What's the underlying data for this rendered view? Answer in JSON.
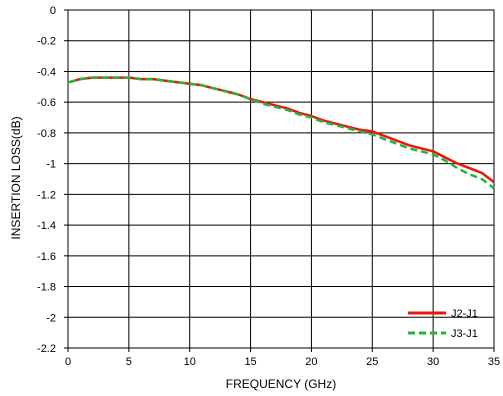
{
  "chart_data": {
    "type": "line",
    "title": "",
    "xlabel": "FREQUENCY (GHz)",
    "ylabel": "INSERTION LOSS(dB)",
    "xlim": [
      0,
      35
    ],
    "ylim": [
      -2.2,
      0
    ],
    "xticks": [
      0,
      5,
      10,
      15,
      20,
      25,
      30,
      35
    ],
    "yticks": [
      0,
      -0.2,
      -0.4,
      -0.6,
      -0.8,
      -1,
      -1.2,
      -1.4,
      -1.6,
      -1.8,
      -2,
      -2.2
    ],
    "xtick_labels": [
      "0",
      "5",
      "10",
      "15",
      "20",
      "25",
      "30",
      "35"
    ],
    "ytick_labels": [
      "0",
      "-0.2",
      "-0.4",
      "-0.6",
      "-0.8",
      "-1",
      "-1.2",
      "-1.4",
      "-1.6",
      "-1.8",
      "-2",
      "-2.2"
    ],
    "grid": true,
    "legend_position": "bottom-right",
    "series": [
      {
        "name": "J2-J1",
        "color": "#e8170c",
        "dash": "solid",
        "x": [
          0.1,
          1,
          2,
          3,
          4,
          5,
          6,
          7,
          8,
          9,
          10,
          11,
          12,
          13,
          14,
          15,
          16,
          17,
          18,
          19,
          20,
          21,
          22,
          23,
          24,
          25,
          26,
          27,
          28,
          29,
          30,
          31,
          32,
          33,
          34,
          35
        ],
        "y": [
          -0.47,
          -0.45,
          -0.44,
          -0.44,
          -0.44,
          -0.44,
          -0.45,
          -0.45,
          -0.46,
          -0.47,
          -0.48,
          -0.49,
          -0.51,
          -0.53,
          -0.55,
          -0.58,
          -0.6,
          -0.62,
          -0.64,
          -0.67,
          -0.69,
          -0.72,
          -0.74,
          -0.76,
          -0.78,
          -0.79,
          -0.82,
          -0.85,
          -0.88,
          -0.9,
          -0.92,
          -0.96,
          -1.0,
          -1.03,
          -1.06,
          -1.12
        ]
      },
      {
        "name": "J3-J1",
        "color": "#25b33b",
        "dash": "dashed",
        "x": [
          0.1,
          1,
          2,
          3,
          4,
          5,
          6,
          7,
          8,
          9,
          10,
          11,
          12,
          13,
          14,
          15,
          16,
          17,
          18,
          19,
          20,
          21,
          22,
          23,
          24,
          25,
          26,
          27,
          28,
          29,
          30,
          31,
          32,
          33,
          34,
          35
        ],
        "y": [
          -0.47,
          -0.45,
          -0.44,
          -0.44,
          -0.44,
          -0.44,
          -0.45,
          -0.45,
          -0.46,
          -0.47,
          -0.48,
          -0.49,
          -0.51,
          -0.53,
          -0.55,
          -0.58,
          -0.61,
          -0.63,
          -0.65,
          -0.68,
          -0.7,
          -0.73,
          -0.75,
          -0.77,
          -0.79,
          -0.81,
          -0.84,
          -0.87,
          -0.9,
          -0.92,
          -0.94,
          -0.98,
          -1.03,
          -1.07,
          -1.1,
          -1.16
        ]
      }
    ]
  }
}
